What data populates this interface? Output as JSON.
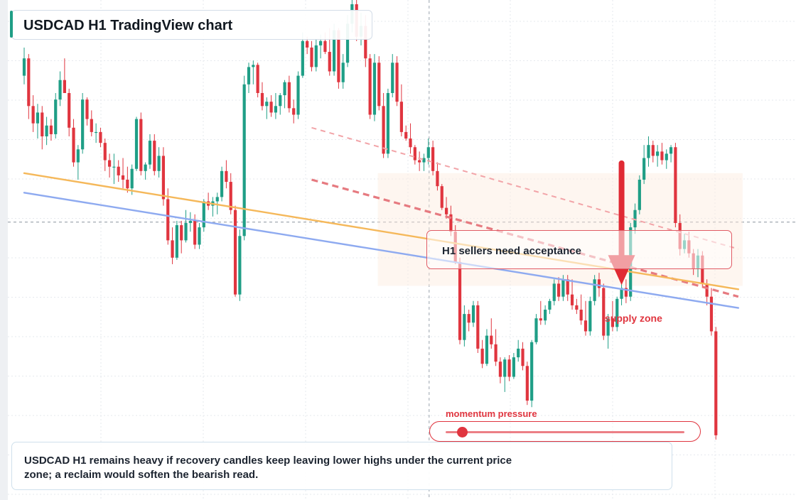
{
  "title": "USDCAD H1 TradingView chart",
  "note": "H1 sellers need acceptance",
  "supply_label": "supply zone",
  "momentum_label": "momentum pressure",
  "momentum_level": 0.05,
  "summary": "USDCAD H1 remains heavy if recovery candles keep leaving lower highs under the current price zone; a reclaim would soften the bearish read.",
  "colors": {
    "bull": "#1f9e86",
    "bear": "#e0353f",
    "trend_orange": "#f5b85a",
    "trend_blue": "#8eaaf0",
    "accent_red": "#e02a34",
    "grid": "#e6e9ee"
  },
  "chart_data": {
    "type": "candlestick",
    "symbol": "USDCAD",
    "timeframe": "H1",
    "price_axis_labels": false,
    "grid": true,
    "candles": [
      {
        "o": 74.0,
        "h": 80.5,
        "l": 72.0,
        "c": 78.0
      },
      {
        "o": 78.0,
        "h": 79.0,
        "l": 64.0,
        "c": 67.0
      },
      {
        "o": 67.0,
        "h": 69.5,
        "l": 61.0,
        "c": 63.0
      },
      {
        "o": 63.0,
        "h": 67.5,
        "l": 59.5,
        "c": 65.5
      },
      {
        "o": 65.5,
        "h": 67.0,
        "l": 57.0,
        "c": 60.0
      },
      {
        "o": 60.0,
        "h": 64.5,
        "l": 58.0,
        "c": 62.5
      },
      {
        "o": 62.5,
        "h": 64.0,
        "l": 59.0,
        "c": 60.5
      },
      {
        "o": 60.5,
        "h": 70.0,
        "l": 59.5,
        "c": 68.5
      },
      {
        "o": 68.5,
        "h": 75.0,
        "l": 67.0,
        "c": 73.0
      },
      {
        "o": 73.0,
        "h": 78.0,
        "l": 70.0,
        "c": 70.0
      },
      {
        "o": 70.0,
        "h": 71.0,
        "l": 60.0,
        "c": 62.0
      },
      {
        "o": 62.0,
        "h": 64.0,
        "l": 53.0,
        "c": 54.0
      },
      {
        "o": 54.0,
        "h": 58.0,
        "l": 50.0,
        "c": 57.0
      },
      {
        "o": 57.0,
        "h": 70.0,
        "l": 56.0,
        "c": 68.5
      },
      {
        "o": 68.5,
        "h": 69.0,
        "l": 62.5,
        "c": 64.0
      },
      {
        "o": 64.0,
        "h": 66.0,
        "l": 60.0,
        "c": 61.0
      },
      {
        "o": 61.0,
        "h": 63.0,
        "l": 58.5,
        "c": 61.0
      },
      {
        "o": 61.0,
        "h": 62.0,
        "l": 57.5,
        "c": 58.5
      },
      {
        "o": 58.5,
        "h": 59.5,
        "l": 52.0,
        "c": 54.5
      },
      {
        "o": 54.5,
        "h": 56.0,
        "l": 50.5,
        "c": 53.0
      },
      {
        "o": 53.0,
        "h": 56.0,
        "l": 49.0,
        "c": 53.0
      },
      {
        "o": 53.0,
        "h": 54.5,
        "l": 49.5,
        "c": 51.0
      },
      {
        "o": 51.0,
        "h": 55.0,
        "l": 48.0,
        "c": 50.0
      },
      {
        "o": 50.0,
        "h": 53.0,
        "l": 47.0,
        "c": 48.0
      },
      {
        "o": 48.0,
        "h": 53.5,
        "l": 46.5,
        "c": 52.5
      },
      {
        "o": 52.5,
        "h": 64.5,
        "l": 52.0,
        "c": 64.0
      },
      {
        "o": 64.0,
        "h": 65.5,
        "l": 51.0,
        "c": 52.0
      },
      {
        "o": 52.0,
        "h": 54.0,
        "l": 50.0,
        "c": 53.5
      },
      {
        "o": 53.5,
        "h": 60.5,
        "l": 52.5,
        "c": 59.0
      },
      {
        "o": 59.0,
        "h": 60.5,
        "l": 51.0,
        "c": 52.0
      },
      {
        "o": 52.0,
        "h": 57.5,
        "l": 50.5,
        "c": 55.5
      },
      {
        "o": 55.5,
        "h": 57.5,
        "l": 44.0,
        "c": 45.5
      },
      {
        "o": 45.5,
        "h": 48.0,
        "l": 35.0,
        "c": 36.0
      },
      {
        "o": 36.0,
        "h": 39.0,
        "l": 30.5,
        "c": 32.0
      },
      {
        "o": 32.0,
        "h": 40.5,
        "l": 31.5,
        "c": 39.5
      },
      {
        "o": 39.5,
        "h": 40.5,
        "l": 33.0,
        "c": 36.0
      },
      {
        "o": 36.0,
        "h": 43.0,
        "l": 35.5,
        "c": 40.0
      },
      {
        "o": 40.0,
        "h": 42.5,
        "l": 38.0,
        "c": 40.5
      },
      {
        "o": 40.5,
        "h": 42.0,
        "l": 34.0,
        "c": 35.0
      },
      {
        "o": 35.0,
        "h": 40.0,
        "l": 34.0,
        "c": 39.0
      },
      {
        "o": 39.0,
        "h": 45.5,
        "l": 38.0,
        "c": 45.0
      },
      {
        "o": 45.0,
        "h": 47.0,
        "l": 43.0,
        "c": 44.0
      },
      {
        "o": 44.0,
        "h": 46.0,
        "l": 41.5,
        "c": 45.0
      },
      {
        "o": 45.0,
        "h": 47.0,
        "l": 42.0,
        "c": 46.0
      },
      {
        "o": 46.0,
        "h": 53.0,
        "l": 45.0,
        "c": 52.0
      },
      {
        "o": 52.0,
        "h": 54.5,
        "l": 48.0,
        "c": 49.5
      },
      {
        "o": 49.5,
        "h": 51.5,
        "l": 42.0,
        "c": 43.0
      },
      {
        "o": 43.0,
        "h": 44.0,
        "l": 23.0,
        "c": 23.5
      },
      {
        "o": 23.5,
        "h": 38.5,
        "l": 22.0,
        "c": 37.0
      },
      {
        "o": 37.0,
        "h": 74.0,
        "l": 36.0,
        "c": 72.0
      },
      {
        "o": 72.0,
        "h": 77.0,
        "l": 70.0,
        "c": 76.0
      },
      {
        "o": 76.0,
        "h": 77.5,
        "l": 72.0,
        "c": 76.5
      },
      {
        "o": 76.5,
        "h": 77.0,
        "l": 69.0,
        "c": 70.0
      },
      {
        "o": 70.0,
        "h": 72.5,
        "l": 66.0,
        "c": 67.0
      },
      {
        "o": 67.0,
        "h": 69.0,
        "l": 64.0,
        "c": 68.0
      },
      {
        "o": 68.0,
        "h": 69.5,
        "l": 64.5,
        "c": 65.5
      },
      {
        "o": 65.5,
        "h": 70.0,
        "l": 64.0,
        "c": 67.0
      },
      {
        "o": 67.0,
        "h": 70.0,
        "l": 65.0,
        "c": 69.5
      },
      {
        "o": 69.5,
        "h": 73.0,
        "l": 66.5,
        "c": 72.5
      },
      {
        "o": 72.5,
        "h": 74.0,
        "l": 65.5,
        "c": 66.5
      },
      {
        "o": 66.5,
        "h": 68.5,
        "l": 63.0,
        "c": 65.0
      },
      {
        "o": 65.0,
        "h": 75.0,
        "l": 64.0,
        "c": 74.0
      },
      {
        "o": 74.0,
        "h": 84.0,
        "l": 73.5,
        "c": 82.0
      },
      {
        "o": 82.0,
        "h": 83.0,
        "l": 79.0,
        "c": 80.5
      },
      {
        "o": 80.5,
        "h": 82.0,
        "l": 75.0,
        "c": 76.0
      },
      {
        "o": 76.0,
        "h": 82.5,
        "l": 75.0,
        "c": 81.0
      },
      {
        "o": 81.0,
        "h": 83.5,
        "l": 78.0,
        "c": 82.0
      },
      {
        "o": 82.0,
        "h": 84.0,
        "l": 79.0,
        "c": 79.5
      },
      {
        "o": 79.5,
        "h": 85.0,
        "l": 74.0,
        "c": 75.0
      },
      {
        "o": 75.0,
        "h": 86.0,
        "l": 74.0,
        "c": 84.5
      },
      {
        "o": 84.5,
        "h": 85.0,
        "l": 71.0,
        "c": 72.5
      },
      {
        "o": 72.5,
        "h": 79.0,
        "l": 71.0,
        "c": 77.0
      },
      {
        "o": 77.0,
        "h": 88.0,
        "l": 76.0,
        "c": 86.0
      },
      {
        "o": 86.0,
        "h": 92.0,
        "l": 84.0,
        "c": 90.5
      },
      {
        "o": 90.5,
        "h": 92.5,
        "l": 82.0,
        "c": 83.0
      },
      {
        "o": 83.0,
        "h": 88.5,
        "l": 81.0,
        "c": 85.5
      },
      {
        "o": 85.5,
        "h": 88.0,
        "l": 76.0,
        "c": 78.0
      },
      {
        "o": 78.0,
        "h": 79.0,
        "l": 64.0,
        "c": 65.0
      },
      {
        "o": 65.0,
        "h": 79.0,
        "l": 63.5,
        "c": 77.0
      },
      {
        "o": 77.0,
        "h": 78.5,
        "l": 66.0,
        "c": 67.0
      },
      {
        "o": 67.0,
        "h": 70.0,
        "l": 55.0,
        "c": 56.0
      },
      {
        "o": 56.0,
        "h": 71.0,
        "l": 55.0,
        "c": 70.0
      },
      {
        "o": 70.0,
        "h": 79.0,
        "l": 69.0,
        "c": 77.0
      },
      {
        "o": 77.0,
        "h": 78.5,
        "l": 67.0,
        "c": 68.0
      },
      {
        "o": 68.0,
        "h": 72.0,
        "l": 60.0,
        "c": 61.0
      },
      {
        "o": 61.0,
        "h": 62.5,
        "l": 59.0,
        "c": 59.5
      },
      {
        "o": 59.5,
        "h": 63.0,
        "l": 56.0,
        "c": 57.5
      },
      {
        "o": 57.5,
        "h": 58.0,
        "l": 53.5,
        "c": 54.5
      },
      {
        "o": 54.5,
        "h": 56.5,
        "l": 52.0,
        "c": 54.0
      },
      {
        "o": 54.0,
        "h": 56.0,
        "l": 52.0,
        "c": 55.0
      },
      {
        "o": 55.0,
        "h": 59.5,
        "l": 53.5,
        "c": 57.5
      },
      {
        "o": 57.5,
        "h": 59.0,
        "l": 51.0,
        "c": 52.0
      },
      {
        "o": 52.0,
        "h": 54.0,
        "l": 47.5,
        "c": 48.5
      },
      {
        "o": 48.5,
        "h": 49.0,
        "l": 43.0,
        "c": 43.5
      },
      {
        "o": 43.5,
        "h": 46.0,
        "l": 41.0,
        "c": 42.0
      },
      {
        "o": 42.0,
        "h": 44.0,
        "l": 37.0,
        "c": 38.0
      },
      {
        "o": 38.0,
        "h": 39.5,
        "l": 30.5,
        "c": 31.0
      },
      {
        "o": 31.0,
        "h": 32.0,
        "l": 12.0,
        "c": 13.0
      },
      {
        "o": 13.0,
        "h": 21.0,
        "l": 11.5,
        "c": 19.0
      },
      {
        "o": 19.0,
        "h": 20.0,
        "l": 15.0,
        "c": 17.0
      },
      {
        "o": 17.0,
        "h": 22.0,
        "l": 16.0,
        "c": 21.0
      },
      {
        "o": 21.0,
        "h": 22.0,
        "l": 10.0,
        "c": 11.0
      },
      {
        "o": 11.0,
        "h": 13.0,
        "l": 6.5,
        "c": 7.5
      },
      {
        "o": 7.5,
        "h": 15.5,
        "l": 7.0,
        "c": 14.0
      },
      {
        "o": 14.0,
        "h": 18.0,
        "l": 11.0,
        "c": 12.0
      },
      {
        "o": 12.0,
        "h": 15.5,
        "l": 7.0,
        "c": 8.0
      },
      {
        "o": 8.0,
        "h": 9.0,
        "l": 3.0,
        "c": 4.5
      },
      {
        "o": 4.5,
        "h": 9.0,
        "l": 1.0,
        "c": 8.5
      },
      {
        "o": 8.5,
        "h": 9.5,
        "l": 3.5,
        "c": 4.5
      },
      {
        "o": 4.5,
        "h": 10.0,
        "l": 4.0,
        "c": 9.0
      },
      {
        "o": 9.0,
        "h": 13.0,
        "l": 8.0,
        "c": 11.0
      },
      {
        "o": 11.0,
        "h": 12.5,
        "l": 6.0,
        "c": 7.0
      },
      {
        "o": 7.0,
        "h": 8.0,
        "l": -2.0,
        "c": -1.0
      },
      {
        "o": -1.0,
        "h": 13.0,
        "l": -2.5,
        "c": 12.5
      },
      {
        "o": 12.5,
        "h": 19.0,
        "l": 12.0,
        "c": 18.0
      },
      {
        "o": 18.0,
        "h": 22.0,
        "l": 16.5,
        "c": 17.5
      },
      {
        "o": 17.5,
        "h": 21.0,
        "l": 16.5,
        "c": 20.0
      },
      {
        "o": 20.0,
        "h": 22.5,
        "l": 19.0,
        "c": 22.0
      },
      {
        "o": 22.0,
        "h": 27.0,
        "l": 21.0,
        "c": 26.0
      },
      {
        "o": 26.0,
        "h": 27.5,
        "l": 22.0,
        "c": 23.0
      },
      {
        "o": 23.0,
        "h": 28.0,
        "l": 22.0,
        "c": 27.0
      },
      {
        "o": 27.0,
        "h": 28.0,
        "l": 22.0,
        "c": 23.5
      },
      {
        "o": 23.5,
        "h": 27.0,
        "l": 20.0,
        "c": 21.0
      },
      {
        "o": 21.0,
        "h": 22.5,
        "l": 19.0,
        "c": 20.0
      },
      {
        "o": 20.0,
        "h": 23.5,
        "l": 16.5,
        "c": 17.5
      },
      {
        "o": 17.5,
        "h": 22.0,
        "l": 14.0,
        "c": 15.0
      },
      {
        "o": 15.0,
        "h": 23.0,
        "l": 14.0,
        "c": 22.0
      },
      {
        "o": 22.0,
        "h": 28.0,
        "l": 21.0,
        "c": 27.0
      },
      {
        "o": 27.0,
        "h": 28.5,
        "l": 23.0,
        "c": 25.0
      },
      {
        "o": 25.0,
        "h": 26.0,
        "l": 13.0,
        "c": 14.0
      },
      {
        "o": 14.0,
        "h": 19.0,
        "l": 11.0,
        "c": 18.0
      },
      {
        "o": 18.0,
        "h": 22.0,
        "l": 15.0,
        "c": 16.0
      },
      {
        "o": 16.0,
        "h": 23.0,
        "l": 15.0,
        "c": 22.5
      },
      {
        "o": 22.5,
        "h": 27.0,
        "l": 21.0,
        "c": 25.0
      },
      {
        "o": 25.0,
        "h": 27.0,
        "l": 21.5,
        "c": 23.0
      },
      {
        "o": 23.0,
        "h": 40.0,
        "l": 22.0,
        "c": 39.0
      },
      {
        "o": 39.0,
        "h": 44.5,
        "l": 37.5,
        "c": 43.0
      },
      {
        "o": 43.0,
        "h": 51.0,
        "l": 42.0,
        "c": 50.0
      },
      {
        "o": 50.0,
        "h": 58.0,
        "l": 49.0,
        "c": 55.0
      },
      {
        "o": 55.0,
        "h": 60.0,
        "l": 53.0,
        "c": 58.0
      },
      {
        "o": 58.0,
        "h": 59.0,
        "l": 54.0,
        "c": 55.5
      },
      {
        "o": 55.5,
        "h": 58.0,
        "l": 53.0,
        "c": 56.5
      },
      {
        "o": 56.5,
        "h": 58.5,
        "l": 53.5,
        "c": 54.5
      },
      {
        "o": 54.5,
        "h": 57.0,
        "l": 52.5,
        "c": 56.0
      },
      {
        "o": 56.0,
        "h": 58.0,
        "l": 54.0,
        "c": 57.5
      },
      {
        "o": 57.5,
        "h": 58.5,
        "l": 39.0,
        "c": 40.0
      },
      {
        "o": 40.0,
        "h": 42.0,
        "l": 32.5,
        "c": 34.0
      },
      {
        "o": 34.0,
        "h": 37.5,
        "l": 33.0,
        "c": 36.0
      },
      {
        "o": 36.0,
        "h": 38.0,
        "l": 32.0,
        "c": 33.0
      },
      {
        "o": 33.0,
        "h": 34.0,
        "l": 28.0,
        "c": 29.5
      },
      {
        "o": 29.5,
        "h": 34.0,
        "l": 27.5,
        "c": 32.5
      },
      {
        "o": 32.5,
        "h": 33.5,
        "l": 25.0,
        "c": 26.0
      },
      {
        "o": 26.0,
        "h": 27.0,
        "l": 21.0,
        "c": 23.0
      },
      {
        "o": 23.0,
        "h": 25.0,
        "l": 14.0,
        "c": 15.0
      },
      {
        "o": 15.0,
        "h": 16.0,
        "l": -10.0,
        "c": -9.0
      }
    ],
    "trendlines": [
      {
        "name": "orange",
        "from": [
          0,
          51.5
        ],
        "to": [
          159,
          24.7
        ]
      },
      {
        "name": "blue",
        "from": [
          0,
          47.0
        ],
        "to": [
          159,
          20.4
        ]
      },
      {
        "name": "red-dashed-strong",
        "from": [
          64,
          50.0
        ],
        "to": [
          159,
          23.0
        ]
      },
      {
        "name": "red-dashed-light",
        "from": [
          64,
          62.0
        ],
        "to": [
          159,
          34.0
        ]
      }
    ],
    "crosshair": {
      "x_index": 90,
      "price": 40.2
    },
    "supply_zone": {
      "from_index": 80,
      "to_index": 159,
      "price_top": 51.5,
      "price_bottom": 25.5
    },
    "arrow": {
      "x_index": 133,
      "from_price": 53.8,
      "to_price": 25.7
    }
  }
}
